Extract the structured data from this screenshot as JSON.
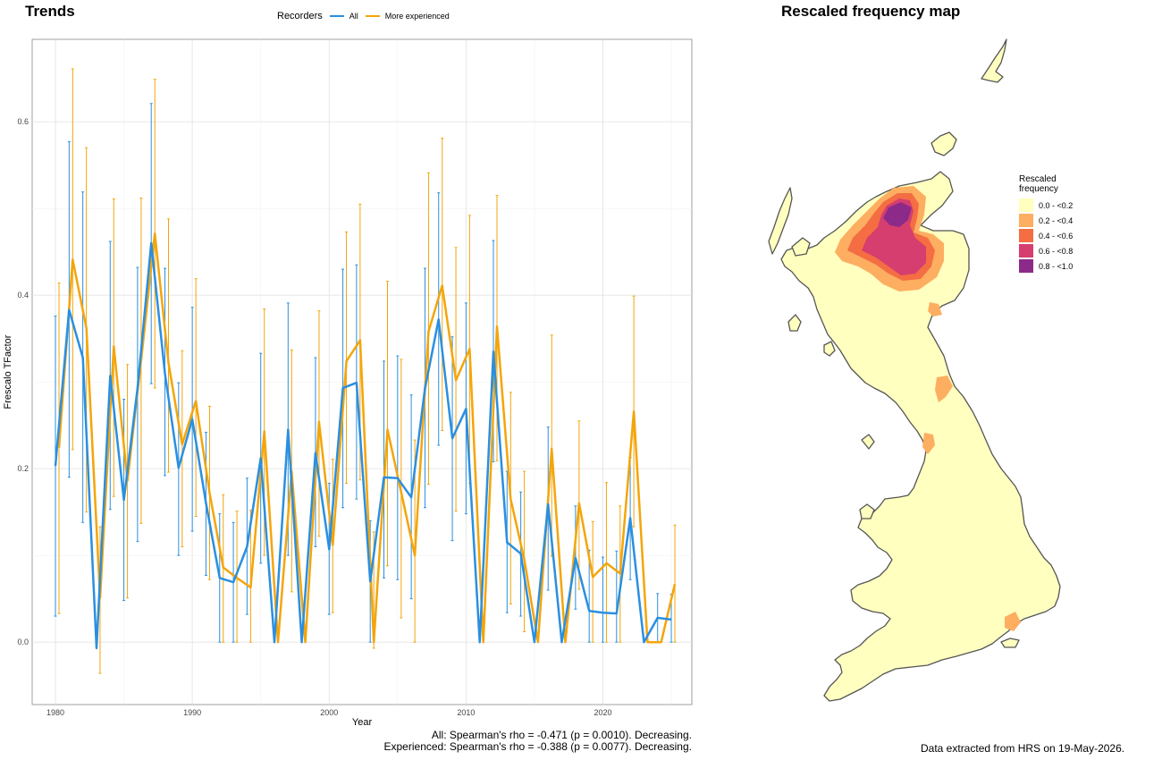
{
  "trends_title": "Trends",
  "map_title": "Rescaled frequency map",
  "legend": {
    "title": "Recorders",
    "items": [
      {
        "label": "All",
        "color": "#2b8fe0"
      },
      {
        "label": "More experienced",
        "color": "#f4a50a"
      }
    ]
  },
  "chart_data": {
    "type": "line",
    "title": "",
    "xlabel": "Year",
    "ylabel": "Frescalo TFactor",
    "xlim": [
      1978.3,
      2026.5
    ],
    "ylim": [
      -0.072,
      0.695
    ],
    "xticks": [
      1980,
      1990,
      2000,
      2010,
      2020
    ],
    "yticks": [
      0.0,
      0.2,
      0.4,
      0.6
    ],
    "ytick_labels": [
      "0.0",
      "0.2",
      "0.4",
      "0.6"
    ],
    "grid": true,
    "series": [
      {
        "name": "All",
        "color": "#2b8fe0",
        "x": [
          1980,
          1981,
          1982,
          1983,
          1984,
          1985,
          1986,
          1987,
          1988,
          1989,
          1990,
          1991,
          1992,
          1993,
          1994,
          1995,
          1996,
          1997,
          1998,
          1999,
          2000,
          2001,
          2002,
          2003,
          2004,
          2005,
          2006,
          2007,
          2008,
          2009,
          2010,
          2011,
          2012,
          2013,
          2014,
          2015,
          2016,
          2017,
          2018,
          2019,
          2020,
          2021,
          2022,
          2023,
          2024,
          2025
        ],
        "y": [
          0.203,
          0.383,
          0.328,
          -0.007,
          0.307,
          0.164,
          0.293,
          0.46,
          0.31,
          0.201,
          0.257,
          0.16,
          0.074,
          0.069,
          0.11,
          0.212,
          0.0,
          0.245,
          0.0,
          0.218,
          0.107,
          0.293,
          0.299,
          0.07,
          0.19,
          0.189,
          0.167,
          0.292,
          0.372,
          0.235,
          0.269,
          0.0,
          0.335,
          0.115,
          0.102,
          0.0,
          0.159,
          0.0,
          0.097,
          0.036,
          0.034,
          0.033,
          0.143,
          0.0,
          0.028,
          0.026
        ],
        "lo": [
          0.03,
          0.19,
          0.138,
          null,
          0.153,
          0.048,
          0.116,
          0.298,
          0.192,
          0.1,
          0.128,
          0.077,
          0.0,
          0.0,
          0.032,
          0.091,
          null,
          0.1,
          null,
          0.11,
          0.032,
          0.155,
          0.165,
          0.0,
          0.074,
          0.072,
          0.05,
          0.155,
          0.227,
          0.117,
          0.148,
          null,
          0.208,
          0.034,
          0.03,
          null,
          0.06,
          null,
          0.038,
          0.0,
          0.0,
          0.0,
          0.072,
          null,
          0.0,
          0.0
        ],
        "hi": [
          0.376,
          0.577,
          0.519,
          null,
          0.462,
          0.28,
          0.432,
          0.621,
          0.431,
          0.299,
          0.386,
          0.242,
          0.148,
          0.138,
          0.189,
          0.333,
          null,
          0.391,
          null,
          0.328,
          0.183,
          0.43,
          0.435,
          0.14,
          0.324,
          0.33,
          0.285,
          0.431,
          0.518,
          0.352,
          0.391,
          null,
          0.463,
          0.197,
          0.173,
          null,
          0.248,
          null,
          0.157,
          0.106,
          0.098,
          0.105,
          0.213,
          null,
          0.056,
          0.055
        ]
      },
      {
        "name": "More experienced",
        "color": "#f4a50a",
        "x": [
          1980,
          1981,
          1982,
          1983,
          1984,
          1985,
          1986,
          1987,
          1988,
          1989,
          1990,
          1991,
          1992,
          1993,
          1994,
          1995,
          1996,
          1997,
          1998,
          1999,
          2000,
          2001,
          2002,
          2003,
          2004,
          2005,
          2006,
          2007,
          2008,
          2009,
          2010,
          2011,
          2012,
          2013,
          2014,
          2015,
          2016,
          2017,
          2018,
          2019,
          2020,
          2021,
          2022,
          2023,
          2024,
          2025
        ],
        "y": [
          0.224,
          0.441,
          0.362,
          0.051,
          0.341,
          0.186,
          0.325,
          0.471,
          0.322,
          0.228,
          0.278,
          0.172,
          0.086,
          0.074,
          0.063,
          0.243,
          0.0,
          0.197,
          0.0,
          0.254,
          0.112,
          0.324,
          0.348,
          0.0,
          0.245,
          0.173,
          0.1,
          0.358,
          0.411,
          0.302,
          0.338,
          0.0,
          0.364,
          0.165,
          0.095,
          0.0,
          0.223,
          0.0,
          0.16,
          0.075,
          0.091,
          0.079,
          0.266,
          0.0,
          0.0,
          0.067
        ],
        "lo": [
          0.033,
          0.222,
          0.15,
          -0.036,
          0.168,
          0.051,
          0.137,
          0.293,
          0.196,
          0.11,
          0.145,
          0.072,
          0.0,
          0.0,
          0.0,
          0.1,
          null,
          0.058,
          null,
          0.122,
          0.034,
          0.183,
          0.187,
          -0.007,
          0.088,
          0.028,
          0.0,
          0.182,
          0.244,
          0.151,
          0.183,
          null,
          0.209,
          0.044,
          0.012,
          null,
          0.099,
          null,
          0.061,
          0.0,
          0.0,
          0.0,
          0.133,
          null,
          0.0,
          0.0
        ],
        "hi": [
          0.414,
          0.661,
          0.57,
          0.133,
          0.511,
          0.32,
          0.512,
          0.649,
          0.488,
          0.336,
          0.419,
          0.272,
          0.17,
          0.151,
          0.152,
          0.384,
          null,
          0.337,
          null,
          0.382,
          0.211,
          0.473,
          0.505,
          0.127,
          0.416,
          0.326,
          0.233,
          0.541,
          0.581,
          0.455,
          0.492,
          null,
          0.515,
          0.288,
          0.197,
          null,
          0.354,
          null,
          0.255,
          0.139,
          0.184,
          0.157,
          0.399,
          null,
          0.0,
          0.135
        ]
      }
    ]
  },
  "stats": {
    "all": "All: Spearman's rho = -0.471 (p = 0.0010). Decreasing.",
    "experienced": "Experienced: Spearman's rho = -0.388 (p = 0.0077). Decreasing."
  },
  "map_legend": {
    "title_line1": "Rescaled",
    "title_line2": "frequency",
    "bins": [
      {
        "label": "0.0 - <0.2",
        "color": "#ffffbf"
      },
      {
        "label": "0.2 - <0.4",
        "color": "#fdae61"
      },
      {
        "label": "0.4 - <0.6",
        "color": "#f46d43"
      },
      {
        "label": "0.6 - <0.8",
        "color": "#d53e6f"
      },
      {
        "label": "0.8 - <1.0",
        "color": "#8c2a8a"
      }
    ]
  },
  "footer": "Data extracted from HRS on 19-May-2026."
}
